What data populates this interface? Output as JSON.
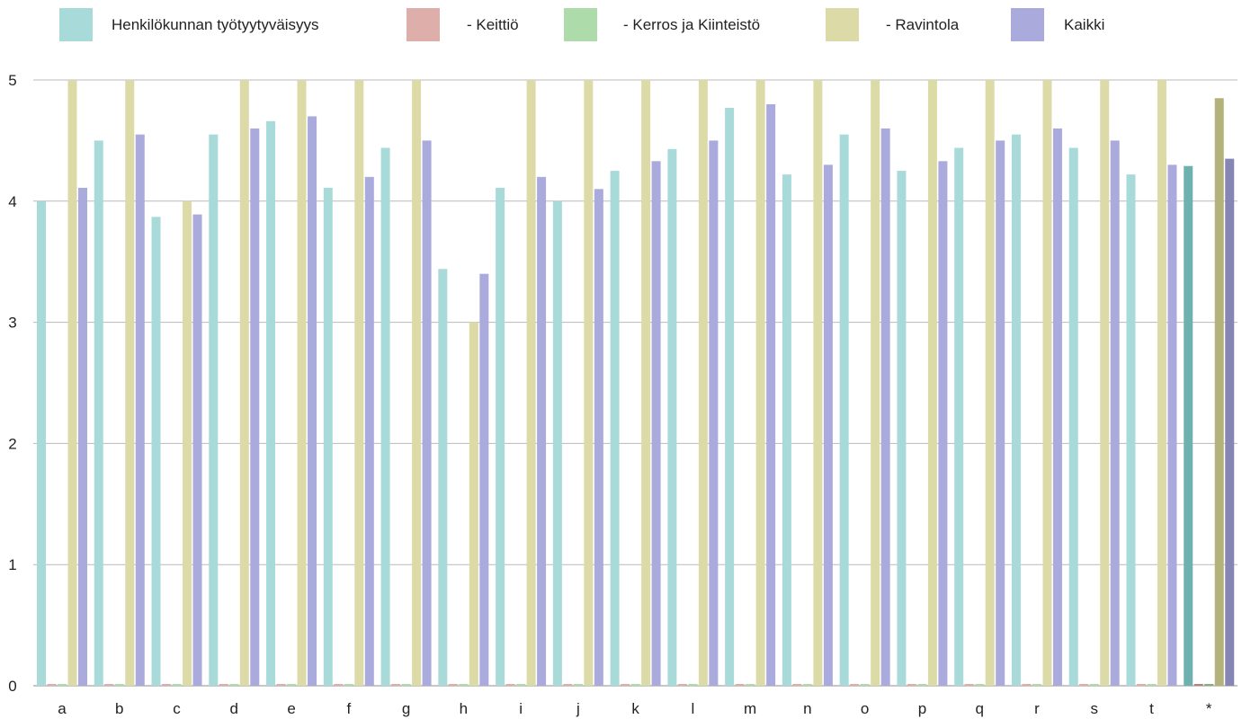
{
  "chart_data": {
    "type": "bar",
    "title": "",
    "xlabel": "",
    "ylabel": "",
    "ylim": [
      0,
      5
    ],
    "yticks": [
      0,
      1,
      2,
      3,
      4,
      5
    ],
    "grid": true,
    "legend_position": "top",
    "categories": [
      "a",
      "b",
      "c",
      "d",
      "e",
      "f",
      "g",
      "h",
      "i",
      "j",
      "k",
      "l",
      "m",
      "n",
      "o",
      "p",
      "q",
      "r",
      "s",
      "t",
      "*"
    ],
    "highlight_category": "*",
    "series": [
      {
        "name": "Henkilökunnan työtyytyväisyys",
        "color": "#a8dada",
        "highlight_color": "#6fb1af",
        "values": [
          4.0,
          4.5,
          3.87,
          4.55,
          4.66,
          4.11,
          4.44,
          3.44,
          4.11,
          4.0,
          4.25,
          4.43,
          4.77,
          4.22,
          4.55,
          4.25,
          4.44,
          4.55,
          4.44,
          4.22,
          4.29
        ]
      },
      {
        "name": "- Keittiö",
        "color": "#deaeaa",
        "highlight_color": "#b87f7b",
        "values": [
          0,
          0,
          0,
          0,
          0,
          0,
          0,
          0,
          0,
          0,
          0,
          0,
          0,
          0,
          0,
          0,
          0,
          0,
          0,
          0,
          0
        ]
      },
      {
        "name": "- Kerros ja Kiinteistö",
        "color": "#aedbaa",
        "highlight_color": "#7fb27b",
        "values": [
          0,
          0,
          0,
          0,
          0,
          0,
          0,
          0,
          0,
          0,
          0,
          0,
          0,
          0,
          0,
          0,
          0,
          0,
          0,
          0,
          0
        ]
      },
      {
        "name": "- Ravintola",
        "color": "#dcdba8",
        "highlight_color": "#b3b27a",
        "values": [
          5.0,
          5.0,
          4.0,
          5.0,
          5.0,
          5.0,
          5.0,
          3.0,
          5.0,
          5.0,
          5.0,
          5.0,
          5.0,
          5.0,
          5.0,
          5.0,
          5.0,
          5.0,
          5.0,
          5.0,
          4.85
        ]
      },
      {
        "name": "Kaikki",
        "color": "#aaaadc",
        "highlight_color": "#8686b5",
        "values": [
          4.11,
          4.55,
          3.89,
          4.6,
          4.7,
          4.2,
          4.5,
          3.4,
          4.2,
          4.1,
          4.33,
          4.5,
          4.8,
          4.3,
          4.6,
          4.33,
          4.5,
          4.6,
          4.5,
          4.3,
          4.35
        ]
      }
    ]
  }
}
